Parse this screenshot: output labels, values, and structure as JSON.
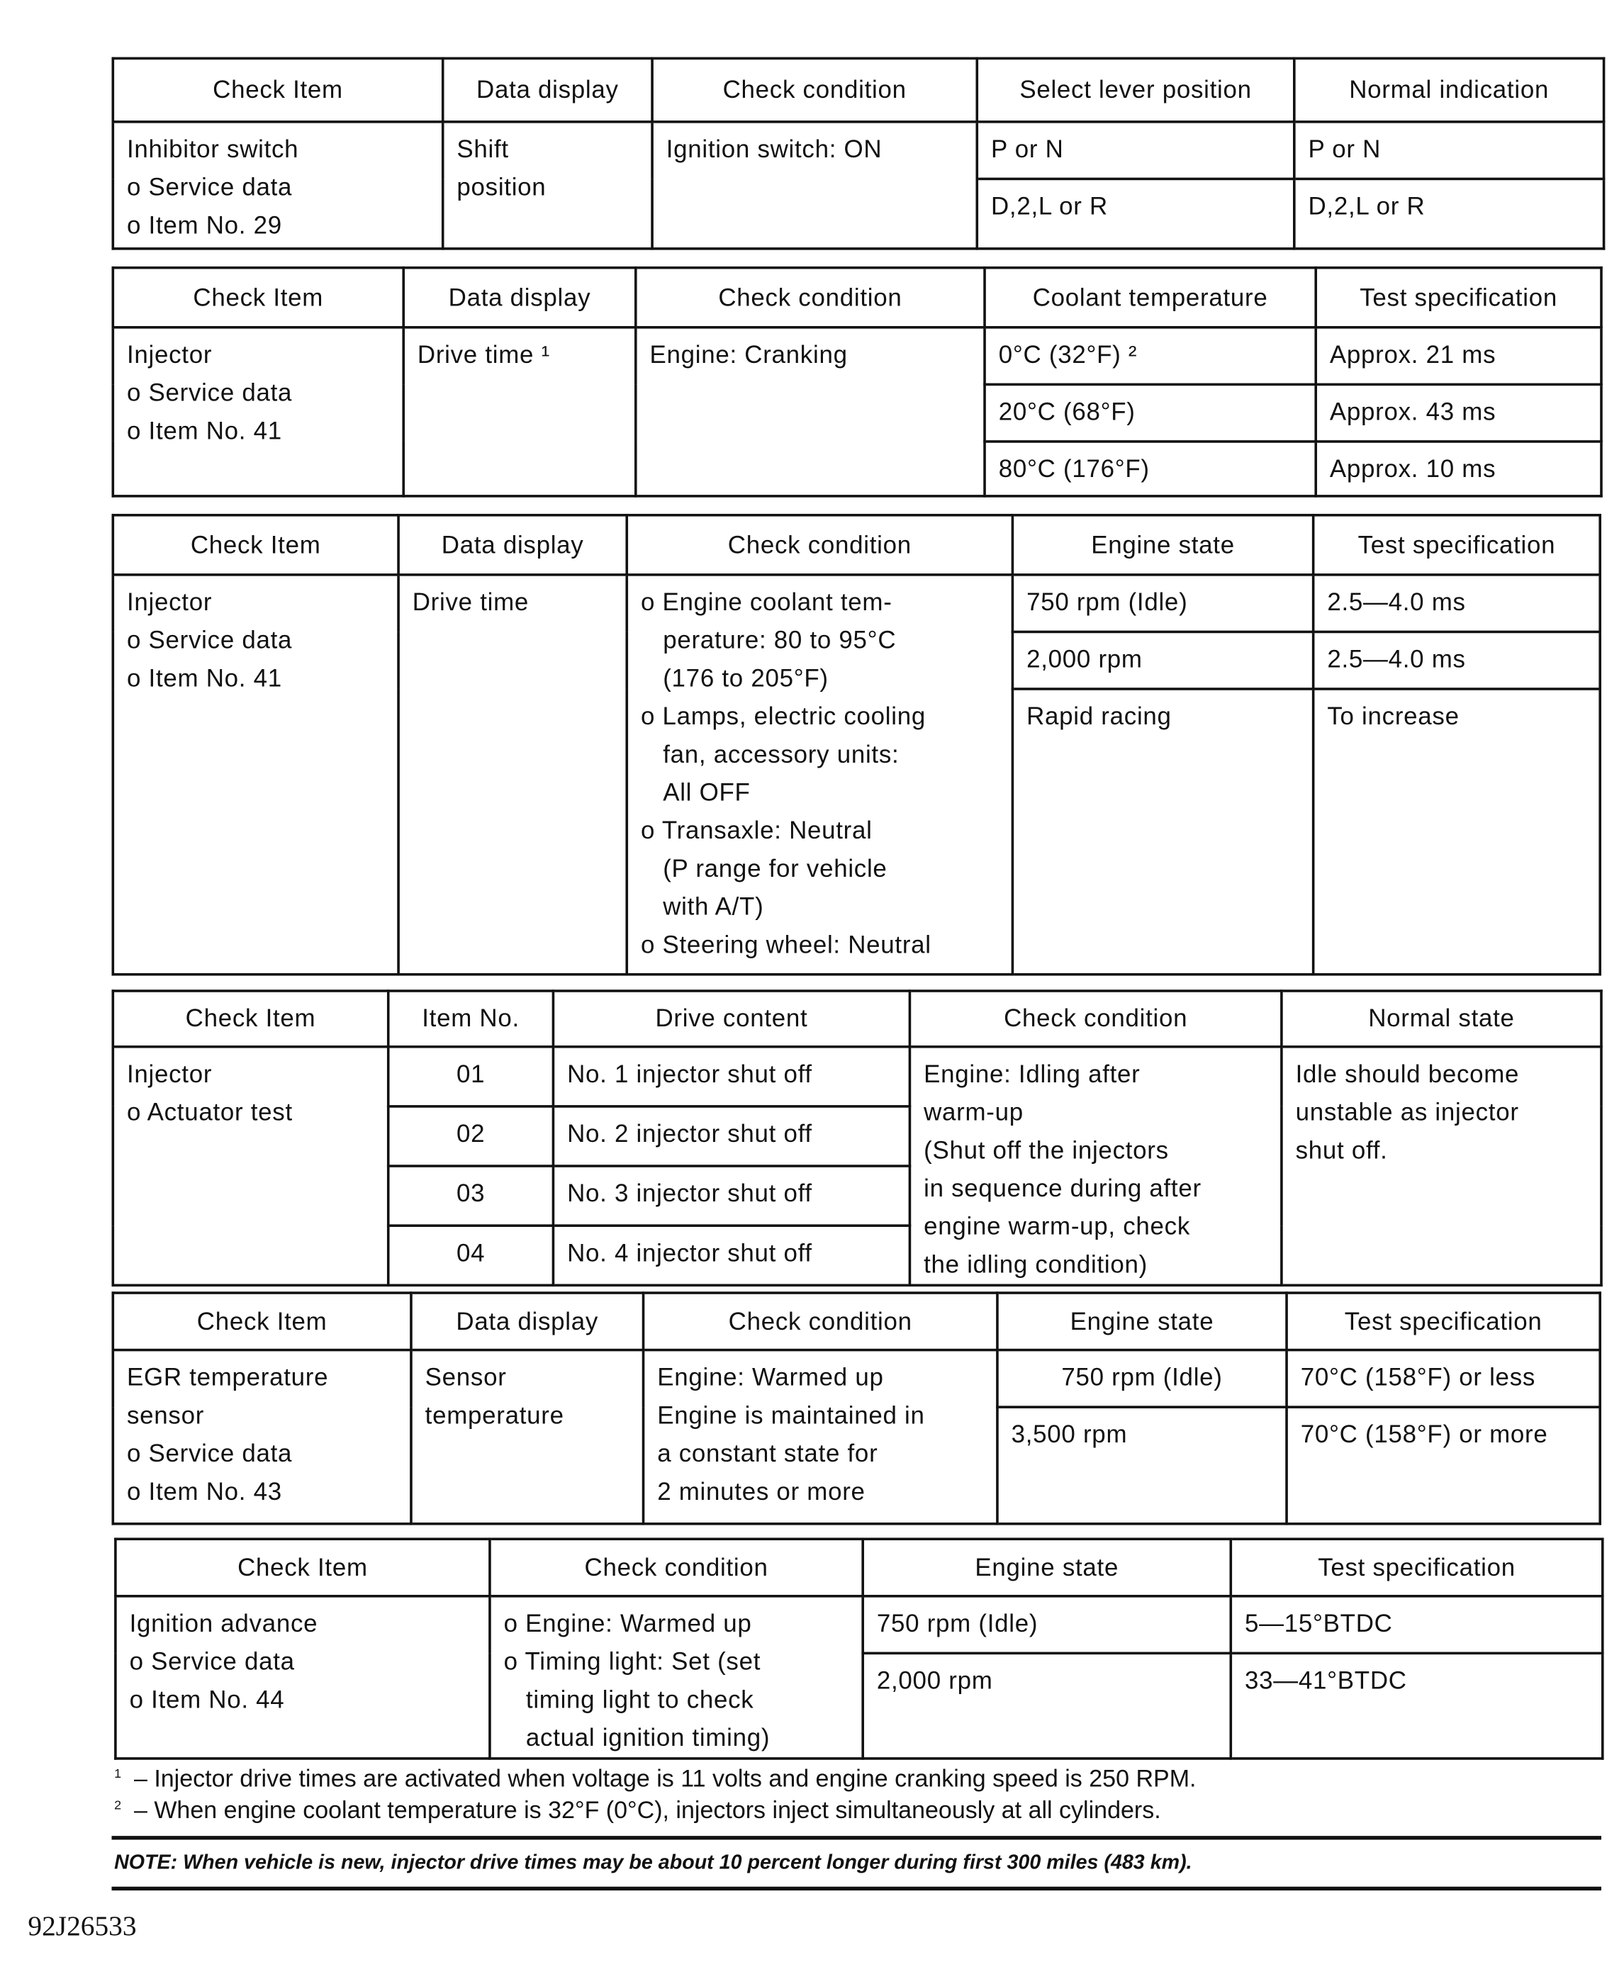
{
  "tables": [
    {
      "headers": [
        "Check Item",
        "Data display",
        "Check condition",
        "Select lever position",
        "Normal indication"
      ],
      "rows": [
        [
          {
            "t": "Inhibitor switch\no Service data\no Item No. 29",
            "rs": 2
          },
          {
            "t": "Shift\nposition",
            "rs": 2
          },
          {
            "t": "Ignition switch: ON",
            "rs": 2
          },
          {
            "t": "P or N"
          },
          {
            "t": "P or N"
          }
        ],
        [
          {
            "t": "D,2,L or R"
          },
          {
            "t": "D,2,L or R"
          }
        ]
      ]
    },
    {
      "headers": [
        "Check Item",
        "Data display",
        "Check condition",
        "Coolant temperature",
        "Test specification"
      ],
      "rows": [
        [
          {
            "t": "Injector\no Service data\no Item No. 41",
            "rs": 3
          },
          {
            "t": "Drive time ¹",
            "rs": 3
          },
          {
            "t": "Engine: Cranking",
            "rs": 3
          },
          {
            "t": "0°C (32°F) ²"
          },
          {
            "t": "Approx. 21 ms"
          }
        ],
        [
          {
            "t": "20°C (68°F)"
          },
          {
            "t": "Approx. 43 ms"
          }
        ],
        [
          {
            "t": "80°C (176°F)"
          },
          {
            "t": "Approx. 10 ms"
          }
        ]
      ]
    },
    {
      "headers": [
        "Check Item",
        "Data display",
        "Check condition",
        "Engine state",
        "Test specification"
      ],
      "rows": [
        [
          {
            "t": "Injector\no Service data\no Item No. 41",
            "rs": 3
          },
          {
            "t": "Drive time",
            "rs": 3
          },
          {
            "t": "o Engine coolant tem-\n   perature: 80 to 95°C\n   (176 to 205°F)\no Lamps, electric cooling\n   fan, accessory units:\n   All OFF\no Transaxle: Neutral\n   (P range for vehicle\n   with A/T)\no Steering wheel: Neutral",
            "rs": 3
          },
          {
            "t": "750 rpm (Idle)"
          },
          {
            "t": "2.5—4.0 ms"
          }
        ],
        [
          {
            "t": "2,000 rpm"
          },
          {
            "t": "2.5—4.0 ms"
          }
        ],
        [
          {
            "t": "Rapid racing"
          },
          {
            "t": "To increase"
          }
        ]
      ]
    },
    {
      "headers": [
        "Check Item",
        "Item No.",
        "Drive content",
        "Check condition",
        "Normal state"
      ],
      "rows": [
        [
          {
            "t": "Injector\no Actuator test",
            "rs": 4
          },
          {
            "t": "01",
            "c": 1
          },
          {
            "t": "No. 1 injector shut off"
          },
          {
            "t": "Engine: Idling after\nwarm-up\n(Shut off the injectors\nin sequence during after\nengine warm-up, check\nthe idling condition)",
            "rs": 4
          },
          {
            "t": "Idle should become\nunstable as injector\nshut off.",
            "rs": 4
          }
        ],
        [
          {
            "t": "02",
            "c": 1
          },
          {
            "t": "No. 2 injector shut off"
          }
        ],
        [
          {
            "t": "03",
            "c": 1
          },
          {
            "t": "No. 3 injector shut off"
          }
        ],
        [
          {
            "t": "04",
            "c": 1
          },
          {
            "t": "No. 4 injector shut off"
          }
        ]
      ]
    },
    {
      "headers": [
        "Check Item",
        "Data display",
        "Check condition",
        "Engine state",
        "Test specification"
      ],
      "rows": [
        [
          {
            "t": "EGR temperature\nsensor\no Service data\no Item No. 43",
            "rs": 2
          },
          {
            "t": "Sensor\ntemperature",
            "rs": 2
          },
          {
            "t": "Engine: Warmed up\nEngine is maintained in\na constant state for\n2 minutes or more",
            "rs": 2
          },
          {
            "t": "750 rpm (Idle)",
            "c": 1
          },
          {
            "t": "70°C (158°F) or less"
          }
        ],
        [
          {
            "t": "3,500 rpm"
          },
          {
            "t": "70°C (158°F) or more"
          }
        ]
      ]
    },
    {
      "headers": [
        "Check Item",
        "Check condition",
        "Engine state",
        "Test specification"
      ],
      "rows": [
        [
          {
            "t": "Ignition advance\no Service data\no Item No. 44",
            "rs": 2
          },
          {
            "t": "o Engine: Warmed up\no Timing light: Set (set\n   timing light to check\n   actual ignition timing)",
            "rs": 2
          },
          {
            "t": "750 rpm (Idle)"
          },
          {
            "t": "5—15°BTDC"
          }
        ],
        [
          {
            "t": "2,000 rpm"
          },
          {
            "t": "33—41°BTDC"
          }
        ]
      ]
    }
  ],
  "footnotes": [
    {
      "mark": "1",
      "text": "– Injector drive times are activated when voltage is 11 volts and engine cranking speed is 250 RPM."
    },
    {
      "mark": "2",
      "text": "– When engine coolant temperature is 32°F (0°C), injectors inject simultaneously at all cylinders."
    }
  ],
  "note": "NOTE: When vehicle is new, injector drive times may be about 10 percent longer during first 300 miles (483 km).",
  "figure_id": "92J26533"
}
